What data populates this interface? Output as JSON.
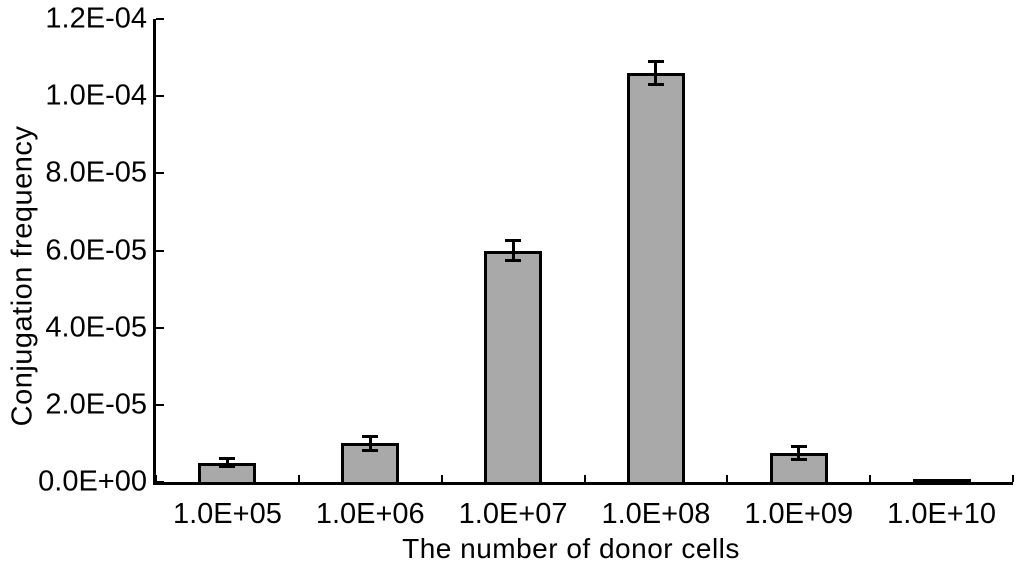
{
  "chart_data": {
    "type": "bar",
    "title": "",
    "xlabel": "The number of donor cells",
    "ylabel": "Conjugation frequency",
    "categories": [
      "1.0E+05",
      "1.0E+06",
      "1.0E+07",
      "1.0E+08",
      "1.0E+09",
      "1.0E+10"
    ],
    "values": [
      5e-06,
      1e-05,
      6e-05,
      0.000106,
      7.5e-06,
      3e-07
    ],
    "errors": [
      1e-06,
      1.8e-06,
      2.5e-06,
      3e-06,
      1.6e-06,
      0
    ],
    "error_bars": true,
    "ylim": [
      0,
      0.00012
    ],
    "yticks": [
      {
        "value": 0,
        "label": "0.0E+00"
      },
      {
        "value": 2e-05,
        "label": "2.0E-05"
      },
      {
        "value": 4e-05,
        "label": "4.0E-05"
      },
      {
        "value": 6e-05,
        "label": "6.0E-05"
      },
      {
        "value": 8e-05,
        "label": "8.0E-05"
      },
      {
        "value": 0.0001,
        "label": "1.0E-04"
      },
      {
        "value": 0.00012,
        "label": "1.2E-04"
      }
    ],
    "grid": false,
    "legend": "none",
    "colors": {
      "bar_fill": "#a9a9a9",
      "bar_border": "#000000",
      "axis": "#000000",
      "text": "#000000",
      "background": "#ffffff"
    }
  }
}
